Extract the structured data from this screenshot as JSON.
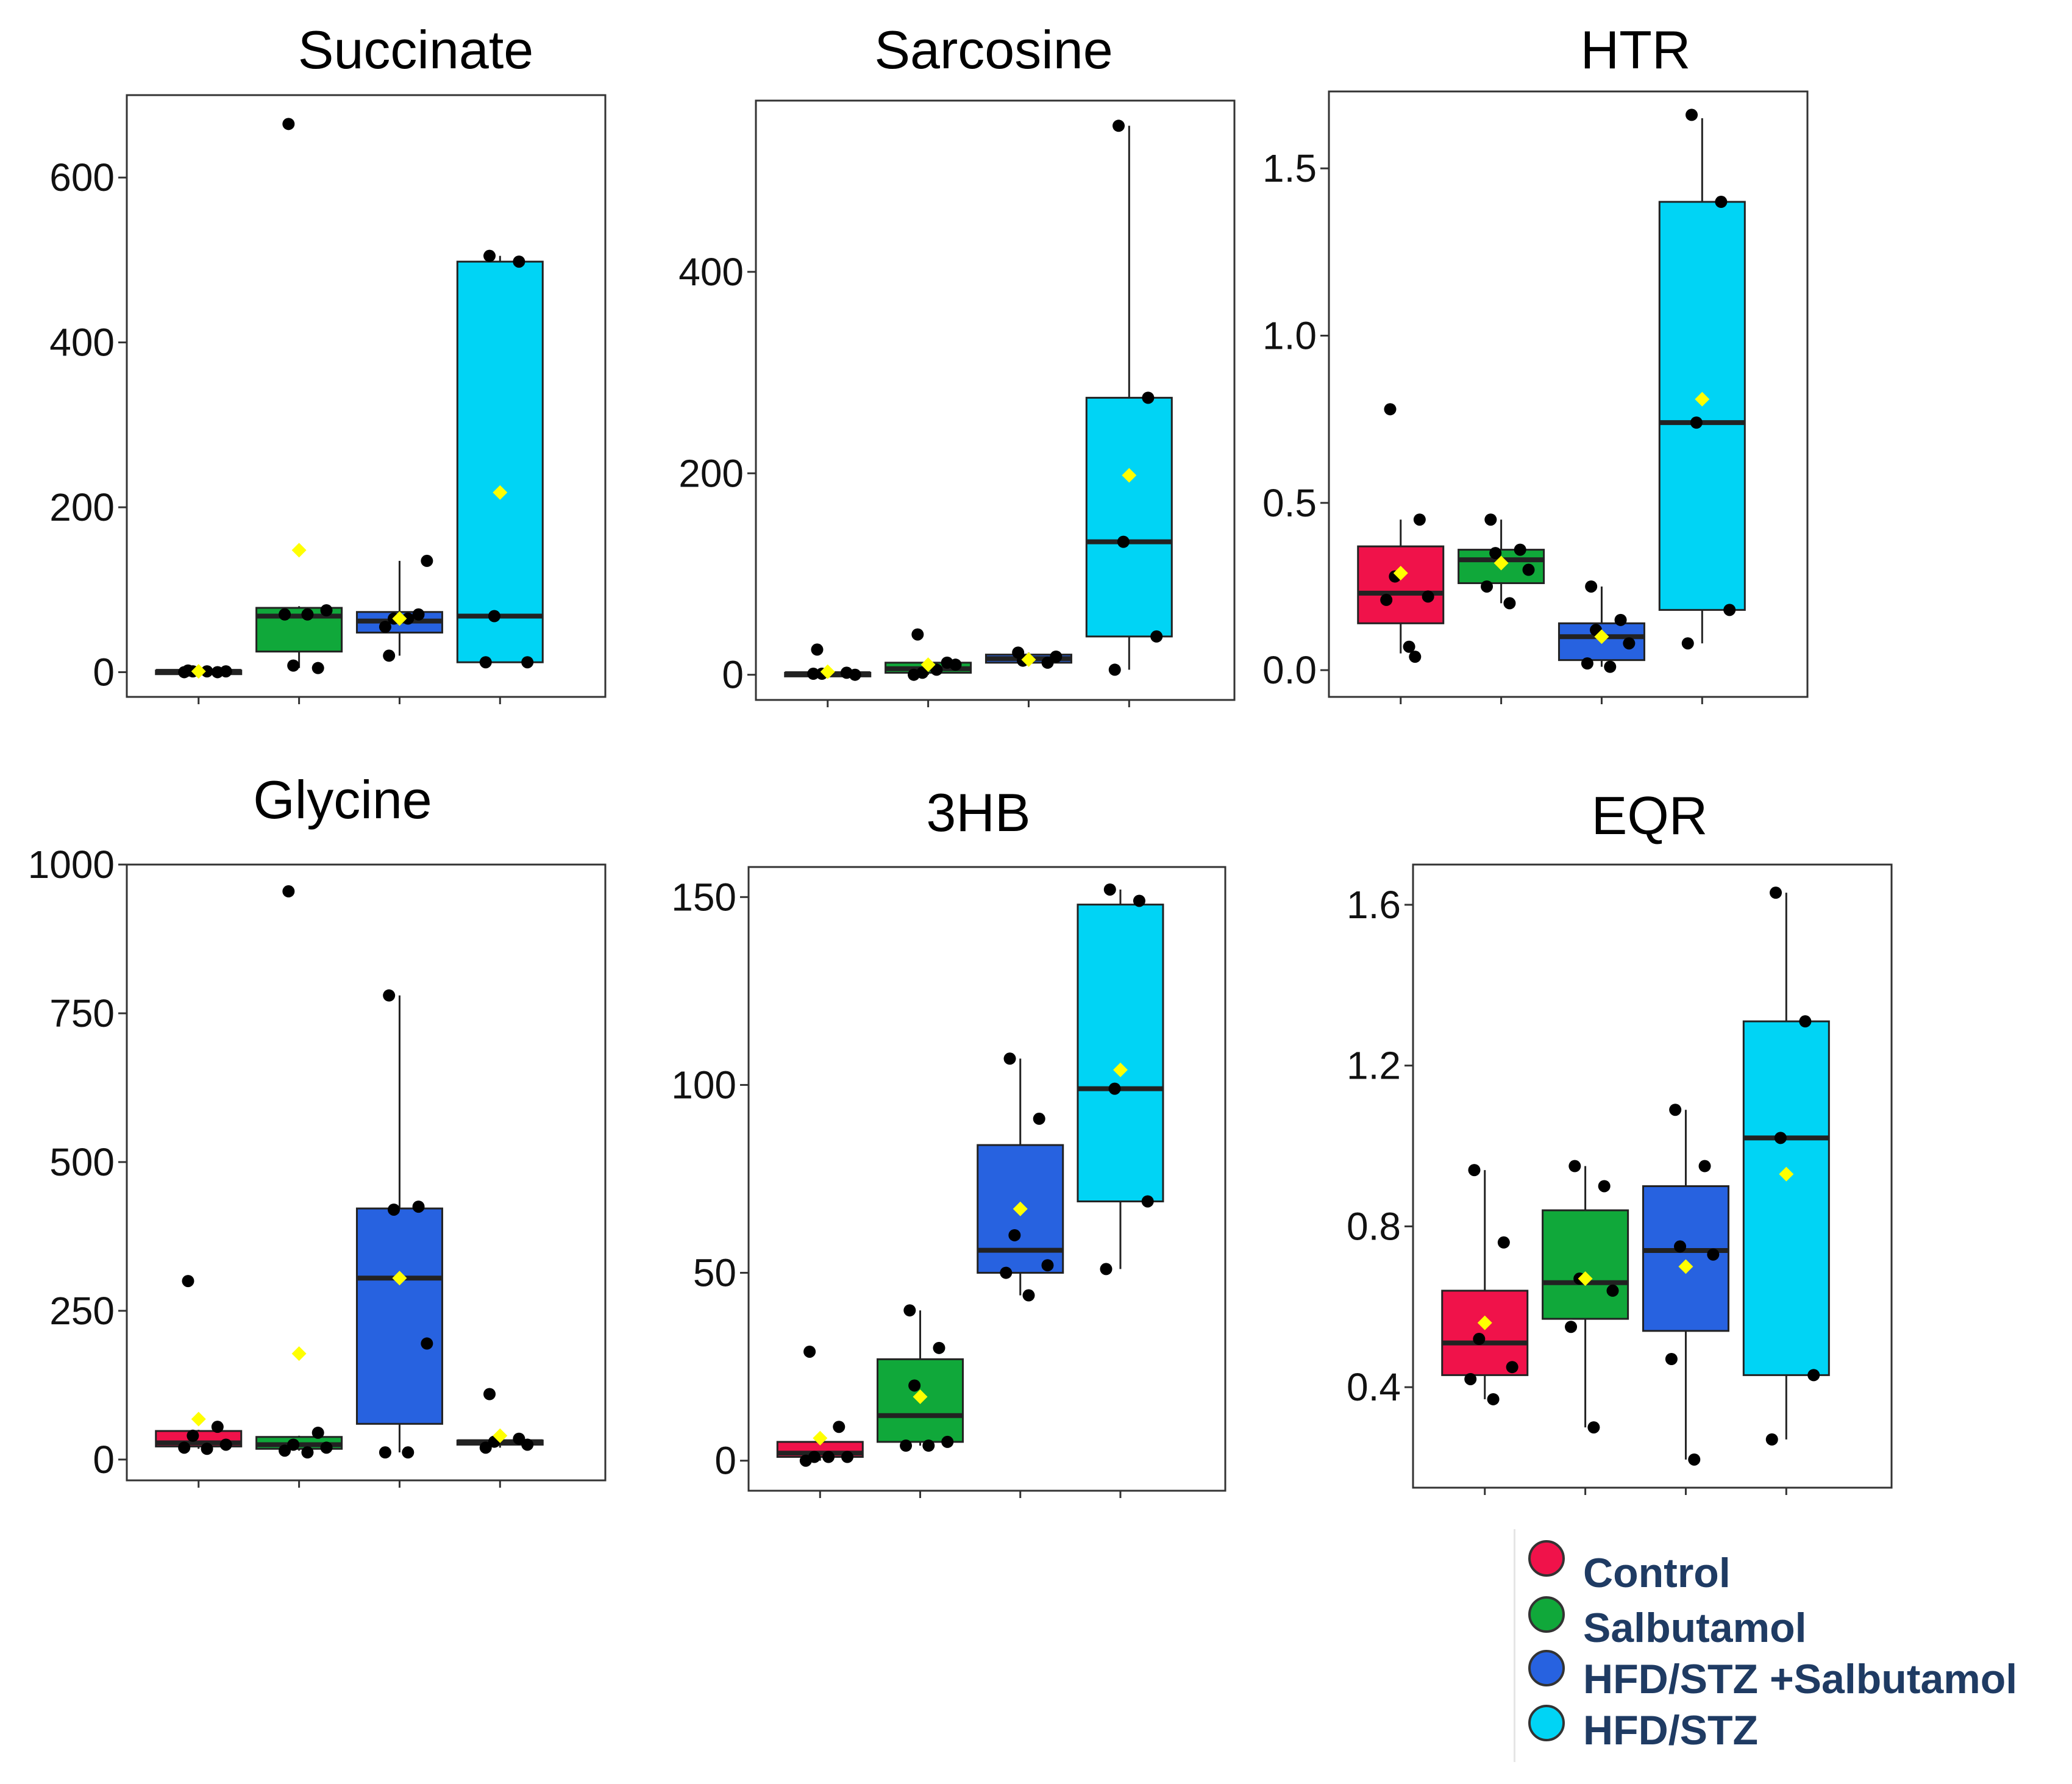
{
  "colors": {
    "Control": "#f0124a",
    "Salbutamol": "#10a83a",
    "HFD/STZ +Salbutamol": "#2762e0",
    "HFD/STZ": "#00d4f5",
    "mean_marker": "#ffff00"
  },
  "legend": {
    "items": [
      {
        "label": "Control",
        "color": "#f0124a"
      },
      {
        "label": "Salbutamol",
        "color": "#10a83a"
      },
      {
        "label": "HFD/STZ +Salbutamol",
        "color": "#2762e0"
      },
      {
        "label": "HFD/STZ",
        "color": "#00d4f5"
      }
    ]
  },
  "chart_data": [
    {
      "type": "box",
      "title": "Succinate",
      "groups": [
        "Control",
        "Salbutamol",
        "HFD/STZ +Salbutamol",
        "HFD/STZ"
      ],
      "ylim": [
        -30,
        700
      ],
      "yticks": [
        0,
        200,
        400,
        600
      ],
      "ytick_labels": [
        "0",
        "200",
        "400",
        "600"
      ],
      "boxes": [
        {
          "group": "Control",
          "q1": 0,
          "median": 1,
          "q3": 2,
          "whisker_low": 0,
          "whisker_high": 3,
          "mean": 1,
          "points": [
            2,
            0,
            1,
            1,
            0,
            1
          ]
        },
        {
          "group": "Salbutamol",
          "q1": 25,
          "median": 68,
          "q3": 78,
          "whisker_low": 5,
          "whisker_high": 80,
          "mean": 148,
          "points": [
            665,
            5,
            8,
            75,
            70,
            70
          ]
        },
        {
          "group": "HFD/STZ +Salbutamol",
          "q1": 48,
          "median": 62,
          "q3": 73,
          "whisker_low": 20,
          "whisker_high": 135,
          "mean": 65,
          "points": [
            20,
            70,
            65,
            135,
            55,
            65
          ]
        },
        {
          "group": "HFD/STZ",
          "q1": 12,
          "median": 68,
          "q3": 498,
          "whisker_low": 12,
          "whisker_high": 505,
          "mean": 218,
          "points": [
            505,
            498,
            68,
            12,
            12
          ]
        }
      ]
    },
    {
      "type": "box",
      "title": "Sarcosine",
      "groups": [
        "Control",
        "Salbutamol",
        "HFD/STZ +Salbutamol",
        "HFD/STZ"
      ],
      "ylim": [
        -25,
        570
      ],
      "yticks": [
        0,
        200,
        400
      ],
      "ytick_labels": [
        "0",
        "200",
        "400"
      ],
      "boxes": [
        {
          "group": "Control",
          "q1": 0,
          "median": 1,
          "q3": 2,
          "whisker_low": 0,
          "whisker_high": 3,
          "mean": 3,
          "points": [
            25,
            2,
            1,
            0,
            1
          ]
        },
        {
          "group": "Salbutamol",
          "q1": 2,
          "median": 6,
          "q3": 12,
          "whisker_low": 0,
          "whisker_high": 14,
          "mean": 10,
          "points": [
            40,
            12,
            2,
            10,
            0,
            5
          ]
        },
        {
          "group": "HFD/STZ +Salbutamol",
          "q1": 12,
          "median": 16,
          "q3": 20,
          "whisker_low": 10,
          "whisker_high": 22,
          "mean": 15,
          "points": [
            22,
            12,
            14,
            18
          ]
        },
        {
          "group": "HFD/STZ",
          "q1": 38,
          "median": 132,
          "q3": 275,
          "whisker_low": 5,
          "whisker_high": 545,
          "mean": 198,
          "points": [
            545,
            275,
            132,
            38,
            5
          ]
        }
      ]
    },
    {
      "type": "box",
      "title": "HTR",
      "groups": [
        "Control",
        "Salbutamol",
        "HFD/STZ +Salbutamol",
        "HFD/STZ"
      ],
      "ylim": [
        -0.08,
        1.73
      ],
      "yticks": [
        0.0,
        0.5,
        1.0,
        1.5
      ],
      "ytick_labels": [
        "0.0",
        "0.5",
        "1.0",
        "1.5"
      ],
      "boxes": [
        {
          "group": "Control",
          "q1": 0.14,
          "median": 0.23,
          "q3": 0.37,
          "whisker_low": 0.05,
          "whisker_high": 0.45,
          "mean": 0.29,
          "points": [
            0.78,
            0.45,
            0.28,
            0.22,
            0.21,
            0.07,
            0.04
          ]
        },
        {
          "group": "Salbutamol",
          "q1": 0.26,
          "median": 0.33,
          "q3": 0.36,
          "whisker_low": 0.2,
          "whisker_high": 0.45,
          "mean": 0.32,
          "points": [
            0.45,
            0.36,
            0.35,
            0.3,
            0.25,
            0.2
          ]
        },
        {
          "group": "HFD/STZ +Salbutamol",
          "q1": 0.03,
          "median": 0.1,
          "q3": 0.14,
          "whisker_low": 0.01,
          "whisker_high": 0.25,
          "mean": 0.1,
          "points": [
            0.25,
            0.15,
            0.12,
            0.08,
            0.02,
            0.01
          ]
        },
        {
          "group": "HFD/STZ",
          "q1": 0.18,
          "median": 0.74,
          "q3": 1.4,
          "whisker_low": 0.08,
          "whisker_high": 1.65,
          "mean": 0.81,
          "points": [
            1.66,
            1.4,
            0.74,
            0.18,
            0.08
          ]
        }
      ]
    },
    {
      "type": "box",
      "title": "Glycine",
      "groups": [
        "Control",
        "Salbutamol",
        "HFD/STZ +Salbutamol",
        "HFD/STZ"
      ],
      "ylim": [
        -35,
        1000
      ],
      "yticks": [
        0,
        250,
        500,
        750,
        1000
      ],
      "ytick_labels": [
        "0",
        "250",
        "500",
        "750",
        "1000"
      ],
      "boxes": [
        {
          "group": "Control",
          "q1": 22,
          "median": 28,
          "q3": 48,
          "whisker_low": 18,
          "whisker_high": 50,
          "mean": 68,
          "points": [
            300,
            55,
            40,
            25,
            20,
            18
          ]
        },
        {
          "group": "Salbutamol",
          "q1": 18,
          "median": 25,
          "q3": 38,
          "whisker_low": 15,
          "whisker_high": 40,
          "mean": 178,
          "points": [
            955,
            45,
            25,
            20,
            15,
            12
          ]
        },
        {
          "group": "HFD/STZ +Salbutamol",
          "q1": 60,
          "median": 305,
          "q3": 422,
          "whisker_low": 12,
          "whisker_high": 780,
          "mean": 305,
          "points": [
            780,
            425,
            420,
            195,
            12,
            12
          ]
        },
        {
          "group": "HFD/STZ",
          "q1": 25,
          "median": 30,
          "q3": 32,
          "whisker_low": 20,
          "whisker_high": 35,
          "mean": 40,
          "points": [
            110,
            35,
            30,
            25,
            20
          ]
        }
      ]
    },
    {
      "type": "box",
      "title": "3HB",
      "groups": [
        "Control",
        "Salbutamol",
        "HFD/STZ +Salbutamol",
        "HFD/STZ"
      ],
      "ylim": [
        -8,
        158
      ],
      "yticks": [
        0,
        50,
        100,
        150
      ],
      "ytick_labels": [
        "0",
        "50",
        "100",
        "150"
      ],
      "boxes": [
        {
          "group": "Control",
          "q1": 1,
          "median": 2,
          "q3": 5,
          "whisker_low": 0,
          "whisker_high": 6,
          "mean": 6,
          "points": [
            29,
            9,
            1,
            1,
            0,
            1
          ]
        },
        {
          "group": "Salbutamol",
          "q1": 5,
          "median": 12,
          "q3": 27,
          "whisker_low": 4,
          "whisker_high": 40,
          "mean": 17,
          "points": [
            40,
            30,
            20,
            5,
            4,
            4
          ]
        },
        {
          "group": "HFD/STZ +Salbutamol",
          "q1": 50,
          "median": 56,
          "q3": 84,
          "whisker_low": 44,
          "whisker_high": 107,
          "mean": 67,
          "points": [
            107,
            91,
            60,
            52,
            50,
            44
          ]
        },
        {
          "group": "HFD/STZ",
          "q1": 69,
          "median": 99,
          "q3": 148,
          "whisker_low": 51,
          "whisker_high": 152,
          "mean": 104,
          "points": [
            152,
            149,
            99,
            69,
            51
          ]
        }
      ]
    },
    {
      "type": "box",
      "title": "EQR",
      "groups": [
        "Control",
        "Salbutamol",
        "HFD/STZ +Salbutamol",
        "HFD/STZ"
      ],
      "ylim": [
        0.15,
        1.7
      ],
      "yticks": [
        0.4,
        0.8,
        1.2,
        1.6
      ],
      "ytick_labels": [
        "0.4",
        "0.8",
        "1.2",
        "1.6"
      ],
      "boxes": [
        {
          "group": "Control",
          "q1": 0.43,
          "median": 0.51,
          "q3": 0.64,
          "whisker_low": 0.37,
          "whisker_high": 0.94,
          "mean": 0.56,
          "points": [
            0.94,
            0.76,
            0.52,
            0.45,
            0.42,
            0.37
          ]
        },
        {
          "group": "Salbutamol",
          "q1": 0.57,
          "median": 0.66,
          "q3": 0.84,
          "whisker_low": 0.3,
          "whisker_high": 0.95,
          "mean": 0.67,
          "points": [
            0.95,
            0.9,
            0.67,
            0.64,
            0.55,
            0.3
          ]
        },
        {
          "group": "HFD/STZ +Salbutamol",
          "q1": 0.54,
          "median": 0.74,
          "q3": 0.9,
          "whisker_low": 0.22,
          "whisker_high": 1.09,
          "mean": 0.7,
          "points": [
            1.09,
            0.95,
            0.75,
            0.73,
            0.47,
            0.22
          ]
        },
        {
          "group": "HFD/STZ",
          "q1": 0.43,
          "median": 1.02,
          "q3": 1.31,
          "whisker_low": 0.27,
          "whisker_high": 1.63,
          "mean": 0.93,
          "points": [
            1.63,
            1.31,
            1.02,
            0.43,
            0.27
          ]
        }
      ]
    }
  ]
}
